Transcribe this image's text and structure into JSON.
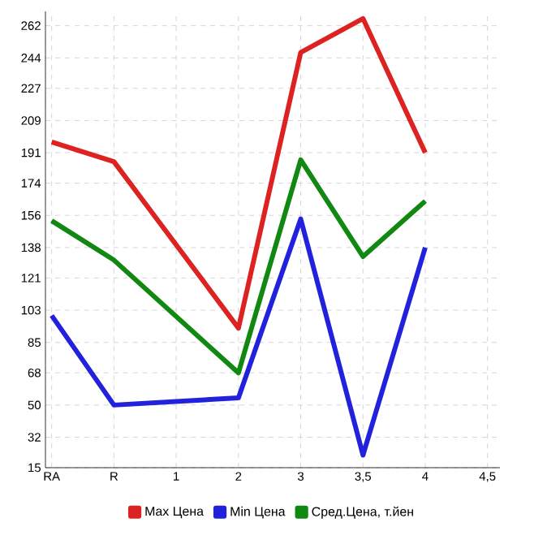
{
  "chart_data": {
    "type": "line",
    "categories": [
      "RA",
      "R",
      "1",
      "2",
      "3",
      "3,5",
      "4",
      "4,5"
    ],
    "series": [
      {
        "name": "Max Цена",
        "color": "#dd2222",
        "values": [
          197,
          186,
          null,
          93,
          247,
          266,
          191,
          null
        ]
      },
      {
        "name": "Min Цена",
        "color": "#2222dd",
        "values": [
          100,
          50,
          null,
          54,
          154,
          22,
          138,
          null
        ]
      },
      {
        "name": "Сред.Цена, т.йен",
        "color": "#118811",
        "values": [
          153,
          131,
          null,
          68,
          187,
          133,
          164,
          null
        ]
      }
    ],
    "ylim": [
      15,
      270
    ],
    "yticks": [
      15,
      32,
      50,
      68,
      85,
      103,
      121,
      138,
      156,
      174,
      191,
      209,
      227,
      244,
      262
    ],
    "grid": true,
    "legend": "bottom",
    "marker": "none",
    "line_style": "solid"
  }
}
